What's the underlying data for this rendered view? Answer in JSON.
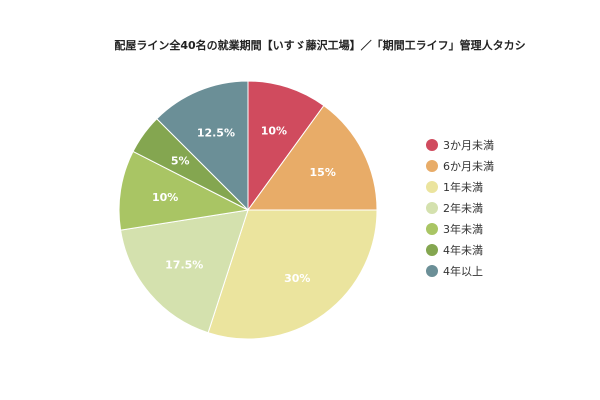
{
  "chart_data": {
    "type": "pie",
    "title": "配屋ライン全40名の就業期間【いすゞ藤沢工場】／「期間工ライフ」管理人タカシ",
    "slices": [
      {
        "label": "3か月未満",
        "value": 10,
        "display": "10%",
        "color": "#d04b5e"
      },
      {
        "label": "6か月未満",
        "value": 15,
        "display": "15%",
        "color": "#e8ac68"
      },
      {
        "label": "1年未満",
        "value": 30,
        "display": "30%",
        "color": "#ebe49e"
      },
      {
        "label": "2年未満",
        "value": 17.5,
        "display": "17.5%",
        "color": "#d4e1ae"
      },
      {
        "label": "3年未満",
        "value": 10,
        "display": "10%",
        "color": "#a9c564"
      },
      {
        "label": "4年未満",
        "value": 5,
        "display": "5%",
        "color": "#84a650"
      },
      {
        "label": "4年以上",
        "value": 12.5,
        "display": "12.5%",
        "color": "#6b8f97"
      }
    ],
    "legend_position": "right"
  }
}
